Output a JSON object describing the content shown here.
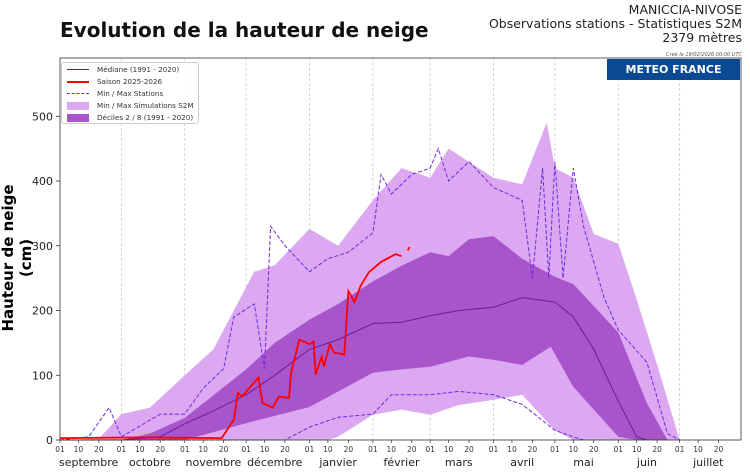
{
  "header": {
    "title": "Evolution de la hauteur de neige",
    "station": "MANICCIA-NIVOSE",
    "subtitle": "Observations stations - Statistiques S2M",
    "altitude": "2379 mètres",
    "created": "Créé le 19/02/2026 00:00 UTC",
    "logo": "METEO FRANCE"
  },
  "colors": {
    "median": "#6a1b9a",
    "season": "#ff0000",
    "stations": "#6a2be0",
    "sim": "#dca8f2",
    "deciles": "#a855cc",
    "logo_bg": "#0b4a92"
  },
  "chart_data": {
    "type": "area",
    "title": "Evolution de la hauteur de neige",
    "ylabel": "Hauteur de neige (cm)",
    "xlabel": "",
    "ylim": [
      0,
      590
    ],
    "xlim": [
      "2025-09-01",
      "2026-07-31"
    ],
    "yticks": [
      0,
      100,
      200,
      300,
      400,
      500
    ],
    "grid": "vertical dashed at month starts",
    "legend_position": "top-left",
    "day_ticks": [
      "01",
      "10",
      "20"
    ],
    "months": [
      "septembre",
      "octobre",
      "novembre",
      "décembre",
      "janvier",
      "février",
      "mars",
      "avril",
      "mai",
      "juin",
      "juillet"
    ],
    "legend": [
      "Médiane (1991 - 2020)",
      "Saison 2025-2026",
      "Min / Max Stations",
      "Min / Max Simulations S2M",
      "Déciles 2 / 8  (1991 - 2020)"
    ],
    "series": {
      "sim_max": [
        [
          "2025-09-01",
          0
        ],
        [
          "2025-09-20",
          2
        ],
        [
          "2025-10-01",
          40
        ],
        [
          "2025-10-15",
          50
        ],
        [
          "2025-11-01",
          100
        ],
        [
          "2025-11-15",
          140
        ],
        [
          "2025-11-25",
          200
        ],
        [
          "2025-12-05",
          260
        ],
        [
          "2025-12-15",
          270
        ],
        [
          "2026-01-01",
          326
        ],
        [
          "2026-01-15",
          300
        ],
        [
          "2026-02-01",
          370
        ],
        [
          "2026-02-15",
          420
        ],
        [
          "2026-03-01",
          405
        ],
        [
          "2026-03-10",
          450
        ],
        [
          "2026-04-01",
          405
        ],
        [
          "2026-04-15",
          395
        ],
        [
          "2026-04-27",
          490
        ],
        [
          "2026-05-01",
          420
        ],
        [
          "2026-05-10",
          405
        ],
        [
          "2026-05-20",
          318
        ],
        [
          "2026-06-01",
          303
        ],
        [
          "2026-06-10",
          217
        ],
        [
          "2026-06-20",
          116
        ],
        [
          "2026-07-01",
          0
        ]
      ],
      "sim_min": [
        [
          "2025-09-01",
          0
        ],
        [
          "2026-01-10",
          0
        ],
        [
          "2026-01-15",
          5
        ],
        [
          "2026-02-01",
          39
        ],
        [
          "2026-02-15",
          47
        ],
        [
          "2026-03-01",
          39
        ],
        [
          "2026-03-15",
          54
        ],
        [
          "2026-04-01",
          62
        ],
        [
          "2026-04-15",
          70
        ],
        [
          "2026-05-01",
          15
        ],
        [
          "2026-05-10",
          0
        ],
        [
          "2026-07-01",
          0
        ]
      ],
      "decile_8": [
        [
          "2025-09-01",
          0
        ],
        [
          "2025-10-01",
          0
        ],
        [
          "2025-10-15",
          10
        ],
        [
          "2025-11-01",
          34
        ],
        [
          "2025-12-01",
          109
        ],
        [
          "2025-12-15",
          150
        ],
        [
          "2026-01-01",
          186
        ],
        [
          "2026-01-15",
          210
        ],
        [
          "2026-02-01",
          245
        ],
        [
          "2026-02-15",
          269
        ],
        [
          "2026-03-01",
          290
        ],
        [
          "2026-03-10",
          284
        ],
        [
          "2026-03-20",
          310
        ],
        [
          "2026-04-01",
          315
        ],
        [
          "2026-04-15",
          280
        ],
        [
          "2026-05-01",
          252
        ],
        [
          "2026-05-10",
          241
        ],
        [
          "2026-06-01",
          166
        ],
        [
          "2026-06-15",
          57
        ],
        [
          "2026-06-25",
          0
        ]
      ],
      "decile_2": [
        [
          "2025-09-01",
          0
        ],
        [
          "2025-11-01",
          0
        ],
        [
          "2025-12-01",
          26
        ],
        [
          "2026-01-01",
          51
        ],
        [
          "2026-02-01",
          104
        ],
        [
          "2026-02-15",
          109
        ],
        [
          "2026-03-01",
          113
        ],
        [
          "2026-03-20",
          129
        ],
        [
          "2026-04-01",
          124
        ],
        [
          "2026-04-15",
          116
        ],
        [
          "2026-04-29",
          144
        ],
        [
          "2026-05-10",
          82
        ],
        [
          "2026-06-01",
          5
        ],
        [
          "2026-06-10",
          0
        ],
        [
          "2026-06-25",
          0
        ]
      ],
      "median": [
        [
          "2025-09-01",
          0
        ],
        [
          "2025-10-01",
          0
        ],
        [
          "2025-10-20",
          5
        ],
        [
          "2025-11-01",
          25
        ],
        [
          "2025-11-15",
          45
        ],
        [
          "2025-12-01",
          70
        ],
        [
          "2025-12-15",
          100
        ],
        [
          "2026-01-01",
          140
        ],
        [
          "2026-01-15",
          155
        ],
        [
          "2026-02-01",
          180
        ],
        [
          "2026-02-15",
          182
        ],
        [
          "2026-03-01",
          192
        ],
        [
          "2026-03-15",
          200
        ],
        [
          "2026-04-01",
          205
        ],
        [
          "2026-04-15",
          220
        ],
        [
          "2026-05-01",
          213
        ],
        [
          "2026-05-10",
          190
        ],
        [
          "2026-05-20",
          140
        ],
        [
          "2026-06-01",
          60
        ],
        [
          "2026-06-10",
          5
        ],
        [
          "2026-06-15",
          0
        ]
      ],
      "stations_max": [
        [
          "2025-09-01",
          0
        ],
        [
          "2025-09-15",
          5
        ],
        [
          "2025-09-25",
          50
        ],
        [
          "2025-10-01",
          5
        ],
        [
          "2025-10-20",
          40
        ],
        [
          "2025-11-01",
          40
        ],
        [
          "2025-11-10",
          80
        ],
        [
          "2025-11-20",
          110
        ],
        [
          "2025-11-25",
          190
        ],
        [
          "2025-12-05",
          210
        ],
        [
          "2025-12-10",
          110
        ],
        [
          "2025-12-13",
          330
        ],
        [
          "2025-12-20",
          300
        ],
        [
          "2026-01-01",
          260
        ],
        [
          "2026-01-10",
          280
        ],
        [
          "2026-01-20",
          290
        ],
        [
          "2026-02-01",
          320
        ],
        [
          "2026-02-05",
          410
        ],
        [
          "2026-02-10",
          380
        ],
        [
          "2026-02-20",
          410
        ],
        [
          "2026-03-01",
          420
        ],
        [
          "2026-03-05",
          450
        ],
        [
          "2026-03-10",
          400
        ],
        [
          "2026-03-20",
          430
        ],
        [
          "2026-04-01",
          390
        ],
        [
          "2026-04-15",
          370
        ],
        [
          "2026-04-20",
          250
        ],
        [
          "2026-04-25",
          420
        ],
        [
          "2026-04-28",
          250
        ],
        [
          "2026-05-01",
          430
        ],
        [
          "2026-05-05",
          250
        ],
        [
          "2026-05-10",
          420
        ],
        [
          "2026-05-15",
          330
        ],
        [
          "2026-05-25",
          220
        ],
        [
          "2026-06-01",
          170
        ],
        [
          "2026-06-15",
          120
        ],
        [
          "2026-06-25",
          10
        ],
        [
          "2026-07-01",
          0
        ]
      ],
      "stations_min": [
        [
          "2025-09-01",
          0
        ],
        [
          "2025-12-20",
          0
        ],
        [
          "2026-01-01",
          20
        ],
        [
          "2026-01-15",
          35
        ],
        [
          "2026-02-01",
          40
        ],
        [
          "2026-02-10",
          70
        ],
        [
          "2026-03-01",
          70
        ],
        [
          "2026-03-15",
          75
        ],
        [
          "2026-04-01",
          70
        ],
        [
          "2026-04-15",
          55
        ],
        [
          "2026-05-01",
          15
        ],
        [
          "2026-05-10",
          5
        ],
        [
          "2026-05-15",
          0
        ]
      ],
      "season": [
        [
          "2025-09-01",
          3
        ],
        [
          "2025-10-11",
          4
        ],
        [
          "2025-11-19",
          3
        ],
        [
          "2025-11-25",
          31
        ],
        [
          "2025-11-27",
          73
        ],
        [
          "2025-11-29",
          67
        ],
        [
          "2025-12-02",
          78
        ],
        [
          "2025-12-07",
          96
        ],
        [
          "2025-12-09",
          57
        ],
        [
          "2025-12-14",
          50
        ],
        [
          "2025-12-17",
          67
        ],
        [
          "2025-12-22",
          65
        ],
        [
          "2025-12-23",
          104
        ],
        [
          "2025-12-27",
          155
        ],
        [
          "2026-01-01",
          148
        ],
        [
          "2026-01-03",
          152
        ],
        [
          "2026-01-04",
          101
        ],
        [
          "2026-01-07",
          129
        ],
        [
          "2026-01-08",
          113
        ],
        [
          "2026-01-11",
          148
        ],
        [
          "2026-01-13",
          135
        ],
        [
          "2026-01-18",
          132
        ],
        [
          "2026-01-20",
          230
        ],
        [
          "2026-01-23",
          213
        ],
        [
          "2026-01-26",
          238
        ],
        [
          "2026-01-30",
          259
        ],
        [
          "2026-02-05",
          275
        ],
        [
          "2026-02-12",
          287
        ],
        [
          "2026-02-15",
          284
        ]
      ],
      "season_fragment": [
        [
          "2026-02-18",
          293
        ],
        [
          "2026-02-19",
          298
        ]
      ]
    }
  }
}
